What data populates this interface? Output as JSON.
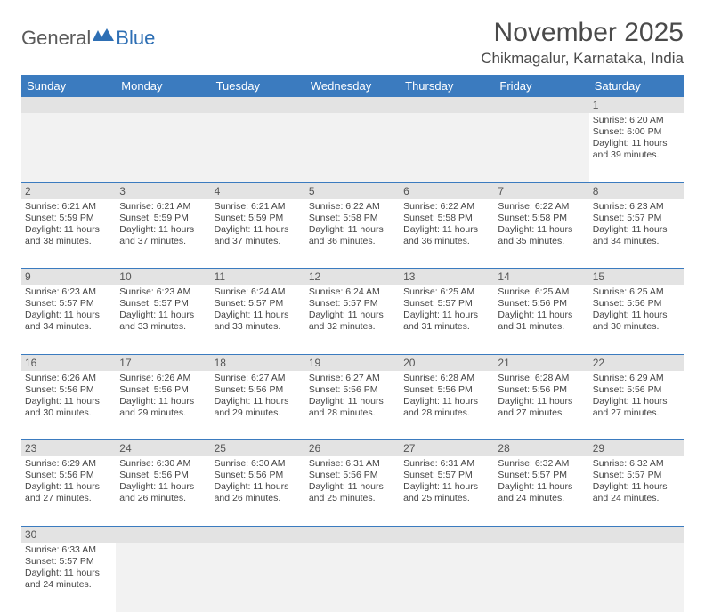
{
  "logo": {
    "text1": "General",
    "text2": "Blue",
    "color_gray": "#6a6a6a",
    "color_blue": "#2e6fb4"
  },
  "title": "November 2025",
  "location": "Chikmagalur, Karnataka, India",
  "colors": {
    "header_bg": "#3b7bbf",
    "header_text": "#ffffff",
    "daynum_bg": "#e3e3e3",
    "border": "#3b7bbf",
    "text": "#444444"
  },
  "day_headers": [
    "Sunday",
    "Monday",
    "Tuesday",
    "Wednesday",
    "Thursday",
    "Friday",
    "Saturday"
  ],
  "weeks": [
    [
      null,
      null,
      null,
      null,
      null,
      null,
      {
        "n": "1",
        "sr": "6:20 AM",
        "ss": "6:00 PM",
        "dl": "11 hours and 39 minutes."
      }
    ],
    [
      {
        "n": "2",
        "sr": "6:21 AM",
        "ss": "5:59 PM",
        "dl": "11 hours and 38 minutes."
      },
      {
        "n": "3",
        "sr": "6:21 AM",
        "ss": "5:59 PM",
        "dl": "11 hours and 37 minutes."
      },
      {
        "n": "4",
        "sr": "6:21 AM",
        "ss": "5:59 PM",
        "dl": "11 hours and 37 minutes."
      },
      {
        "n": "5",
        "sr": "6:22 AM",
        "ss": "5:58 PM",
        "dl": "11 hours and 36 minutes."
      },
      {
        "n": "6",
        "sr": "6:22 AM",
        "ss": "5:58 PM",
        "dl": "11 hours and 36 minutes."
      },
      {
        "n": "7",
        "sr": "6:22 AM",
        "ss": "5:58 PM",
        "dl": "11 hours and 35 minutes."
      },
      {
        "n": "8",
        "sr": "6:23 AM",
        "ss": "5:57 PM",
        "dl": "11 hours and 34 minutes."
      }
    ],
    [
      {
        "n": "9",
        "sr": "6:23 AM",
        "ss": "5:57 PM",
        "dl": "11 hours and 34 minutes."
      },
      {
        "n": "10",
        "sr": "6:23 AM",
        "ss": "5:57 PM",
        "dl": "11 hours and 33 minutes."
      },
      {
        "n": "11",
        "sr": "6:24 AM",
        "ss": "5:57 PM",
        "dl": "11 hours and 33 minutes."
      },
      {
        "n": "12",
        "sr": "6:24 AM",
        "ss": "5:57 PM",
        "dl": "11 hours and 32 minutes."
      },
      {
        "n": "13",
        "sr": "6:25 AM",
        "ss": "5:57 PM",
        "dl": "11 hours and 31 minutes."
      },
      {
        "n": "14",
        "sr": "6:25 AM",
        "ss": "5:56 PM",
        "dl": "11 hours and 31 minutes."
      },
      {
        "n": "15",
        "sr": "6:25 AM",
        "ss": "5:56 PM",
        "dl": "11 hours and 30 minutes."
      }
    ],
    [
      {
        "n": "16",
        "sr": "6:26 AM",
        "ss": "5:56 PM",
        "dl": "11 hours and 30 minutes."
      },
      {
        "n": "17",
        "sr": "6:26 AM",
        "ss": "5:56 PM",
        "dl": "11 hours and 29 minutes."
      },
      {
        "n": "18",
        "sr": "6:27 AM",
        "ss": "5:56 PM",
        "dl": "11 hours and 29 minutes."
      },
      {
        "n": "19",
        "sr": "6:27 AM",
        "ss": "5:56 PM",
        "dl": "11 hours and 28 minutes."
      },
      {
        "n": "20",
        "sr": "6:28 AM",
        "ss": "5:56 PM",
        "dl": "11 hours and 28 minutes."
      },
      {
        "n": "21",
        "sr": "6:28 AM",
        "ss": "5:56 PM",
        "dl": "11 hours and 27 minutes."
      },
      {
        "n": "22",
        "sr": "6:29 AM",
        "ss": "5:56 PM",
        "dl": "11 hours and 27 minutes."
      }
    ],
    [
      {
        "n": "23",
        "sr": "6:29 AM",
        "ss": "5:56 PM",
        "dl": "11 hours and 27 minutes."
      },
      {
        "n": "24",
        "sr": "6:30 AM",
        "ss": "5:56 PM",
        "dl": "11 hours and 26 minutes."
      },
      {
        "n": "25",
        "sr": "6:30 AM",
        "ss": "5:56 PM",
        "dl": "11 hours and 26 minutes."
      },
      {
        "n": "26",
        "sr": "6:31 AM",
        "ss": "5:56 PM",
        "dl": "11 hours and 25 minutes."
      },
      {
        "n": "27",
        "sr": "6:31 AM",
        "ss": "5:57 PM",
        "dl": "11 hours and 25 minutes."
      },
      {
        "n": "28",
        "sr": "6:32 AM",
        "ss": "5:57 PM",
        "dl": "11 hours and 24 minutes."
      },
      {
        "n": "29",
        "sr": "6:32 AM",
        "ss": "5:57 PM",
        "dl": "11 hours and 24 minutes."
      }
    ],
    [
      {
        "n": "30",
        "sr": "6:33 AM",
        "ss": "5:57 PM",
        "dl": "11 hours and 24 minutes."
      },
      null,
      null,
      null,
      null,
      null,
      null
    ]
  ],
  "labels": {
    "sunrise": "Sunrise: ",
    "sunset": "Sunset: ",
    "daylight": "Daylight: "
  }
}
